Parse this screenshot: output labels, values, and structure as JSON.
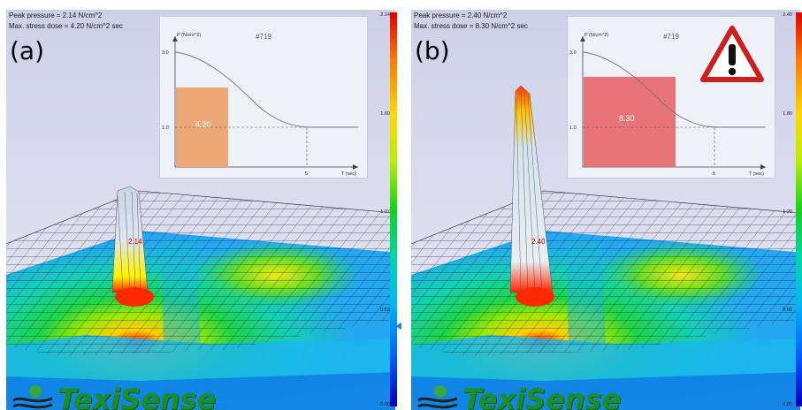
{
  "panels": [
    {
      "id": "a",
      "letter": "(a)",
      "peak_text": "Peak pressure = 2.14 N/cm^2",
      "dose_text": "Max. stress dose = 4.20 N/cm^2 sec",
      "inset": {
        "id_label": "#719",
        "y_axis_label": "P (N/cm^2)",
        "x_axis_label": "T (sec)",
        "y_tick_top": "3.0",
        "y_tick_ref": "1.0",
        "x_tick": "5",
        "dose_value": "4.20",
        "dose_color": "#eda877"
      },
      "peak_label": "2.14",
      "colorbar_ticks": [
        "2.14",
        "1.60",
        "1.07",
        "0.53",
        "0.00"
      ],
      "warning": false
    },
    {
      "id": "b",
      "letter": "(b)",
      "peak_text": "Peak pressure = 2.40 N/cm^2",
      "dose_text": "Max. stress dose = 8.30 N/cm^2 sec",
      "inset": {
        "id_label": "#719",
        "y_axis_label": "P (N/cm^2)",
        "x_axis_label": "T (sec)",
        "y_tick_top": "3.0",
        "y_tick_ref": "1.0",
        "x_tick": "5",
        "dose_value": "8.30",
        "dose_color": "#e8747a"
      },
      "peak_label": "2.40",
      "colorbar_ticks": [
        "2.40",
        "1.80",
        "1.20",
        "0.60",
        "0.00"
      ],
      "warning": true,
      "warning_icon": "warning-triangle-icon"
    }
  ],
  "logo": {
    "text": "TexiSense",
    "icon": "globe-icon"
  }
}
